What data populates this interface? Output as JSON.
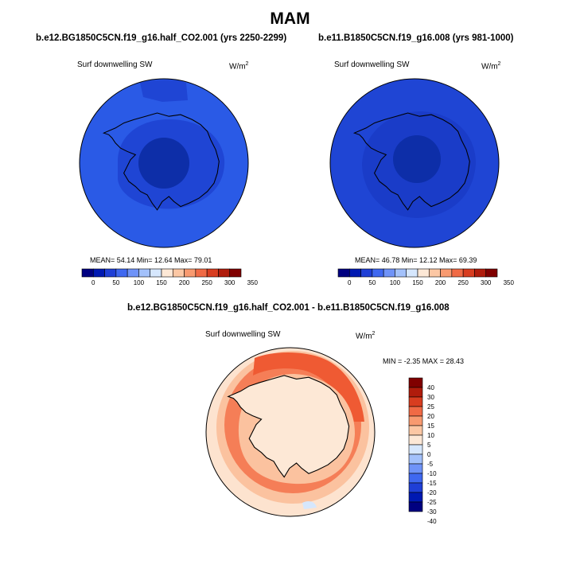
{
  "figure": {
    "title": "MAM"
  },
  "chart_data": [
    {
      "type": "heatmap",
      "projection": "south-polar-stereographic",
      "title": "b.e12.BG1850C5CN.f19_g16.half_CO2.001 (yrs 2250-2299)",
      "variable": "Surf downwelling SW",
      "units_base": "W/m",
      "units_exp": "2",
      "stats_text": "MEAN=  54.14  Min=  12.64  Max=  79.01",
      "mean": 54.14,
      "min": 12.64,
      "max": 79.01,
      "levels": [
        0,
        50,
        100,
        150,
        200,
        250,
        300,
        350
      ],
      "colorbar_labels": [
        "0",
        "50",
        "100",
        "150",
        "200",
        "250",
        "300",
        "350"
      ],
      "colorbar_colors": [
        "#000080",
        "#0019b2",
        "#1f3fd6",
        "#3f68f0",
        "#6f93f8",
        "#a3c1fb",
        "#d6e7fd",
        "#fde8d6",
        "#fcc7a4",
        "#f89a70",
        "#f06a45",
        "#d83d20",
        "#b01c0c",
        "#800000"
      ],
      "region_colors": {
        "outer": "#2a5ae6",
        "mid": "#1f45d4",
        "inner": "#0d2ea8"
      }
    },
    {
      "type": "heatmap",
      "projection": "south-polar-stereographic",
      "title": "b.e11.B1850C5CN.f19_g16.008 (yrs 981-1000)",
      "variable": "Surf downwelling SW",
      "units_base": "W/m",
      "units_exp": "2",
      "stats_text": "MEAN=  46.78  Min=  12.12  Max=  69.39",
      "mean": 46.78,
      "min": 12.12,
      "max": 69.39,
      "levels": [
        0,
        50,
        100,
        150,
        200,
        250,
        300,
        350
      ],
      "colorbar_labels": [
        "0",
        "50",
        "100",
        "150",
        "200",
        "250",
        "300",
        "350"
      ],
      "colorbar_colors": [
        "#000080",
        "#0019b2",
        "#1f3fd6",
        "#3f68f0",
        "#6f93f8",
        "#a3c1fb",
        "#d6e7fd",
        "#fde8d6",
        "#fcc7a4",
        "#f89a70",
        "#f06a45",
        "#d83d20",
        "#b01c0c",
        "#800000"
      ],
      "region_colors": {
        "outer": "#1f45d4",
        "mid": "#1a3cc8",
        "inner": "#0d2ea8"
      }
    },
    {
      "type": "heatmap",
      "projection": "south-polar-stereographic",
      "title": "b.e12.BG1850C5CN.f19_g16.half_CO2.001 - b.e11.B1850C5CN.f19_g16.008",
      "variable": "Surf downwelling SW",
      "units_base": "W/m",
      "units_exp": "2",
      "stats_text": "MIN =  -2.35 MAX =  28.43",
      "min": -2.35,
      "max": 28.43,
      "levels": [
        -40,
        -30,
        -25,
        -20,
        -15,
        -10,
        -5,
        0,
        5,
        10,
        15,
        20,
        25,
        30,
        40
      ],
      "colorbar_labels": [
        "-40",
        "-30",
        "-25",
        "-20",
        "-15",
        "-10",
        "-5",
        "0",
        "5",
        "10",
        "15",
        "20",
        "25",
        "30",
        "40"
      ],
      "colorbar_colors": [
        "#000080",
        "#0019b2",
        "#1f3fd6",
        "#3f68f0",
        "#6f93f8",
        "#a3c1fb",
        "#d6e7fd",
        "#fde8d6",
        "#fcc7a4",
        "#f89a70",
        "#f06a45",
        "#d83d20",
        "#b01c0c",
        "#800000"
      ],
      "region_colors": {
        "outer": "#fde3cf",
        "ring": "#fbc29f",
        "band": "#f57e57",
        "peak": "#ef5a33",
        "land": "#fde8d6"
      }
    }
  ]
}
